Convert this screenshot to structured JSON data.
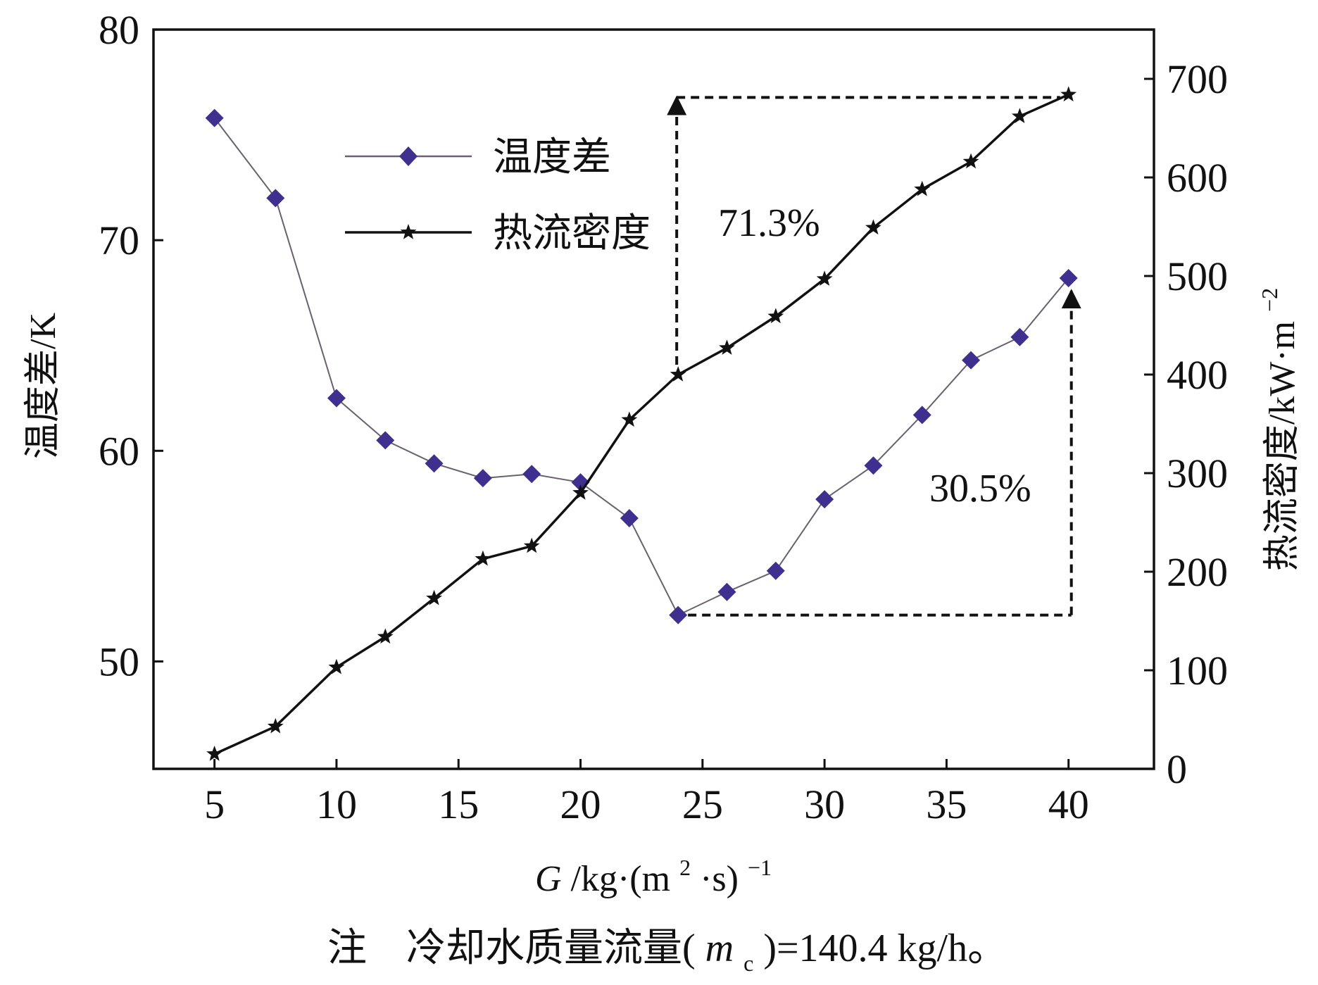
{
  "chart_data": {
    "type": "line",
    "x": [
      5,
      7.5,
      10,
      12,
      14,
      16,
      18,
      20,
      22,
      24,
      26,
      28,
      30,
      32,
      34,
      36,
      38,
      40
    ],
    "xlabel_parts": {
      "var": "G",
      "unit": "/kg·(m",
      "sq": "2",
      "mid": "·s)",
      "exp": "−1"
    },
    "xlim": [
      2.5,
      43.5
    ],
    "xticks": [
      5,
      10,
      15,
      20,
      25,
      30,
      35,
      40
    ],
    "ylabel_left": "温度差/K",
    "ylim_left": [
      44.9,
      80
    ],
    "yticks_left": [
      50,
      60,
      70,
      80
    ],
    "ylabel_right_parts": {
      "text": "热流密度/kW·m",
      "exp": "−2"
    },
    "ylim_right": [
      0,
      750
    ],
    "yticks_right": [
      0,
      100,
      200,
      300,
      400,
      500,
      600,
      700
    ],
    "series": [
      {
        "name": "温度差",
        "axis": "left",
        "marker": "diamond",
        "color": "#3f2f8f",
        "line_color": "#6a6070",
        "values": [
          75.8,
          72.0,
          62.5,
          60.5,
          59.4,
          58.7,
          58.9,
          58.5,
          56.8,
          52.2,
          53.3,
          54.3,
          57.7,
          59.3,
          61.7,
          64.3,
          65.4,
          68.2
        ]
      },
      {
        "name": "热流密度",
        "axis": "right",
        "marker": "star",
        "color": "#111111",
        "line_color": "#111111",
        "values": [
          15,
          43,
          103,
          134,
          173,
          213,
          226,
          280,
          354,
          400,
          427,
          459,
          497,
          549,
          588,
          616,
          662,
          684
        ]
      }
    ],
    "annotations": [
      {
        "text": "71.3%",
        "series": "热流密度",
        "from_x": 24,
        "to_x": 40
      },
      {
        "text": "30.5%",
        "series": "温度差",
        "from_x": 24,
        "to_x": 40
      }
    ],
    "legend_position": "top-left",
    "grid": false,
    "note_parts": {
      "prefix": "注　冷却水质量流量(",
      "var": "m",
      "sub": "c",
      "suffix": ")=140.4 kg/h。"
    }
  }
}
